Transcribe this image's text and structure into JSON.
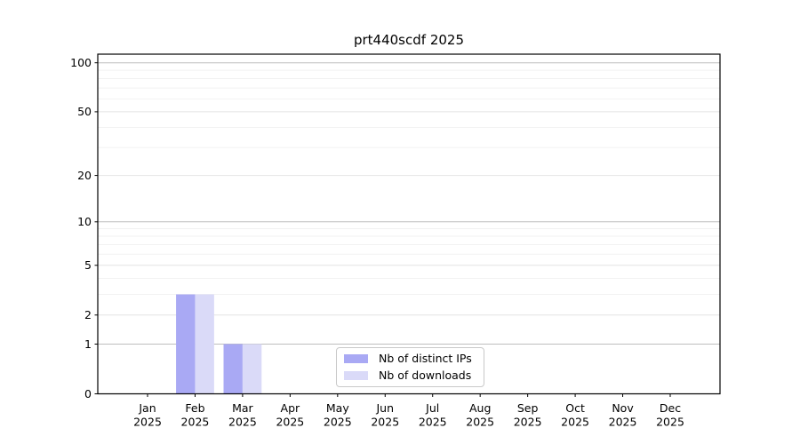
{
  "chart_data": {
    "type": "bar",
    "title": "prt440scdf 2025",
    "categories": [
      "Jan 2025",
      "Feb 2025",
      "Mar 2025",
      "Apr 2025",
      "May 2025",
      "Jun 2025",
      "Jul 2025",
      "Aug 2025",
      "Sep 2025",
      "Oct 2025",
      "Nov 2025",
      "Dec 2025"
    ],
    "series": [
      {
        "name": "Nb of distinct IPs",
        "color": "#a9a9f4",
        "values": [
          0,
          3,
          1,
          0,
          0,
          0,
          0,
          0,
          0,
          0,
          0,
          0
        ]
      },
      {
        "name": "Nb of downloads",
        "color": "#dadaf8",
        "values": [
          0,
          3,
          1,
          0,
          0,
          0,
          0,
          0,
          0,
          0,
          0,
          0
        ]
      }
    ],
    "xlabel": "",
    "ylabel": "",
    "y_scale": "log10(1+y)",
    "y_ticks": [
      0,
      1,
      2,
      5,
      10,
      20,
      50,
      100
    ],
    "y_major_gridlines": [
      1,
      10,
      100
    ],
    "y_minor_gridlines": [
      3,
      4,
      6,
      7,
      8,
      9,
      30,
      40,
      60,
      70,
      80,
      90
    ],
    "ylim": [
      0,
      113
    ],
    "grid": true,
    "legend_position": "lower center"
  }
}
